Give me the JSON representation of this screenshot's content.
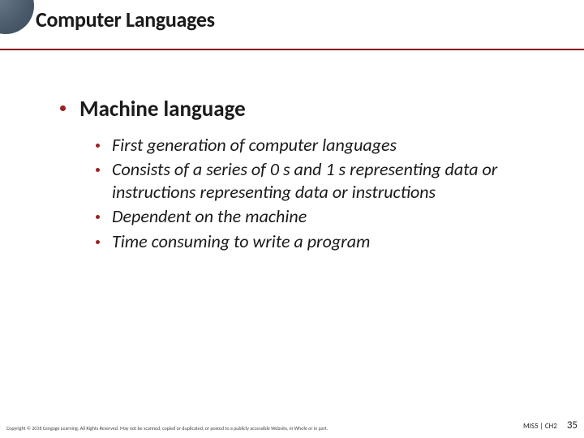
{
  "colors": {
    "accent_rule": "#8a0f0f",
    "bullet": "#9a2222",
    "corner_gradient_inner": "#6b7a8a",
    "corner_gradient_outer": "#3a4a5a",
    "text": "#1a1a1a",
    "background": "#ffffff"
  },
  "typography": {
    "title_fontsize": 26,
    "title_weight": 700,
    "main_bullet_fontsize": 27,
    "main_bullet_weight": 700,
    "sub_bullet_fontsize": 22,
    "sub_bullet_style": "italic",
    "copyright_fontsize": 6,
    "chapter_fontsize": 9,
    "pagenum_fontsize": 13
  },
  "title": "Computer Languages",
  "main": {
    "heading": "Machine language",
    "items": [
      "First generation of computer languages",
      "Consists of a series of 0 s and 1 s representing data or instructions representing data or instructions",
      "Dependent on the machine",
      "Time consuming to write a program"
    ]
  },
  "footer": {
    "copyright": "Copyright © 2016 Cengage Learning. All Rights Reserved. May not be scanned, copied or duplicated, or posted to a publicly accessible Website, in Whole or in part.",
    "chapter": "MIS5 | CH2",
    "page": "35"
  }
}
